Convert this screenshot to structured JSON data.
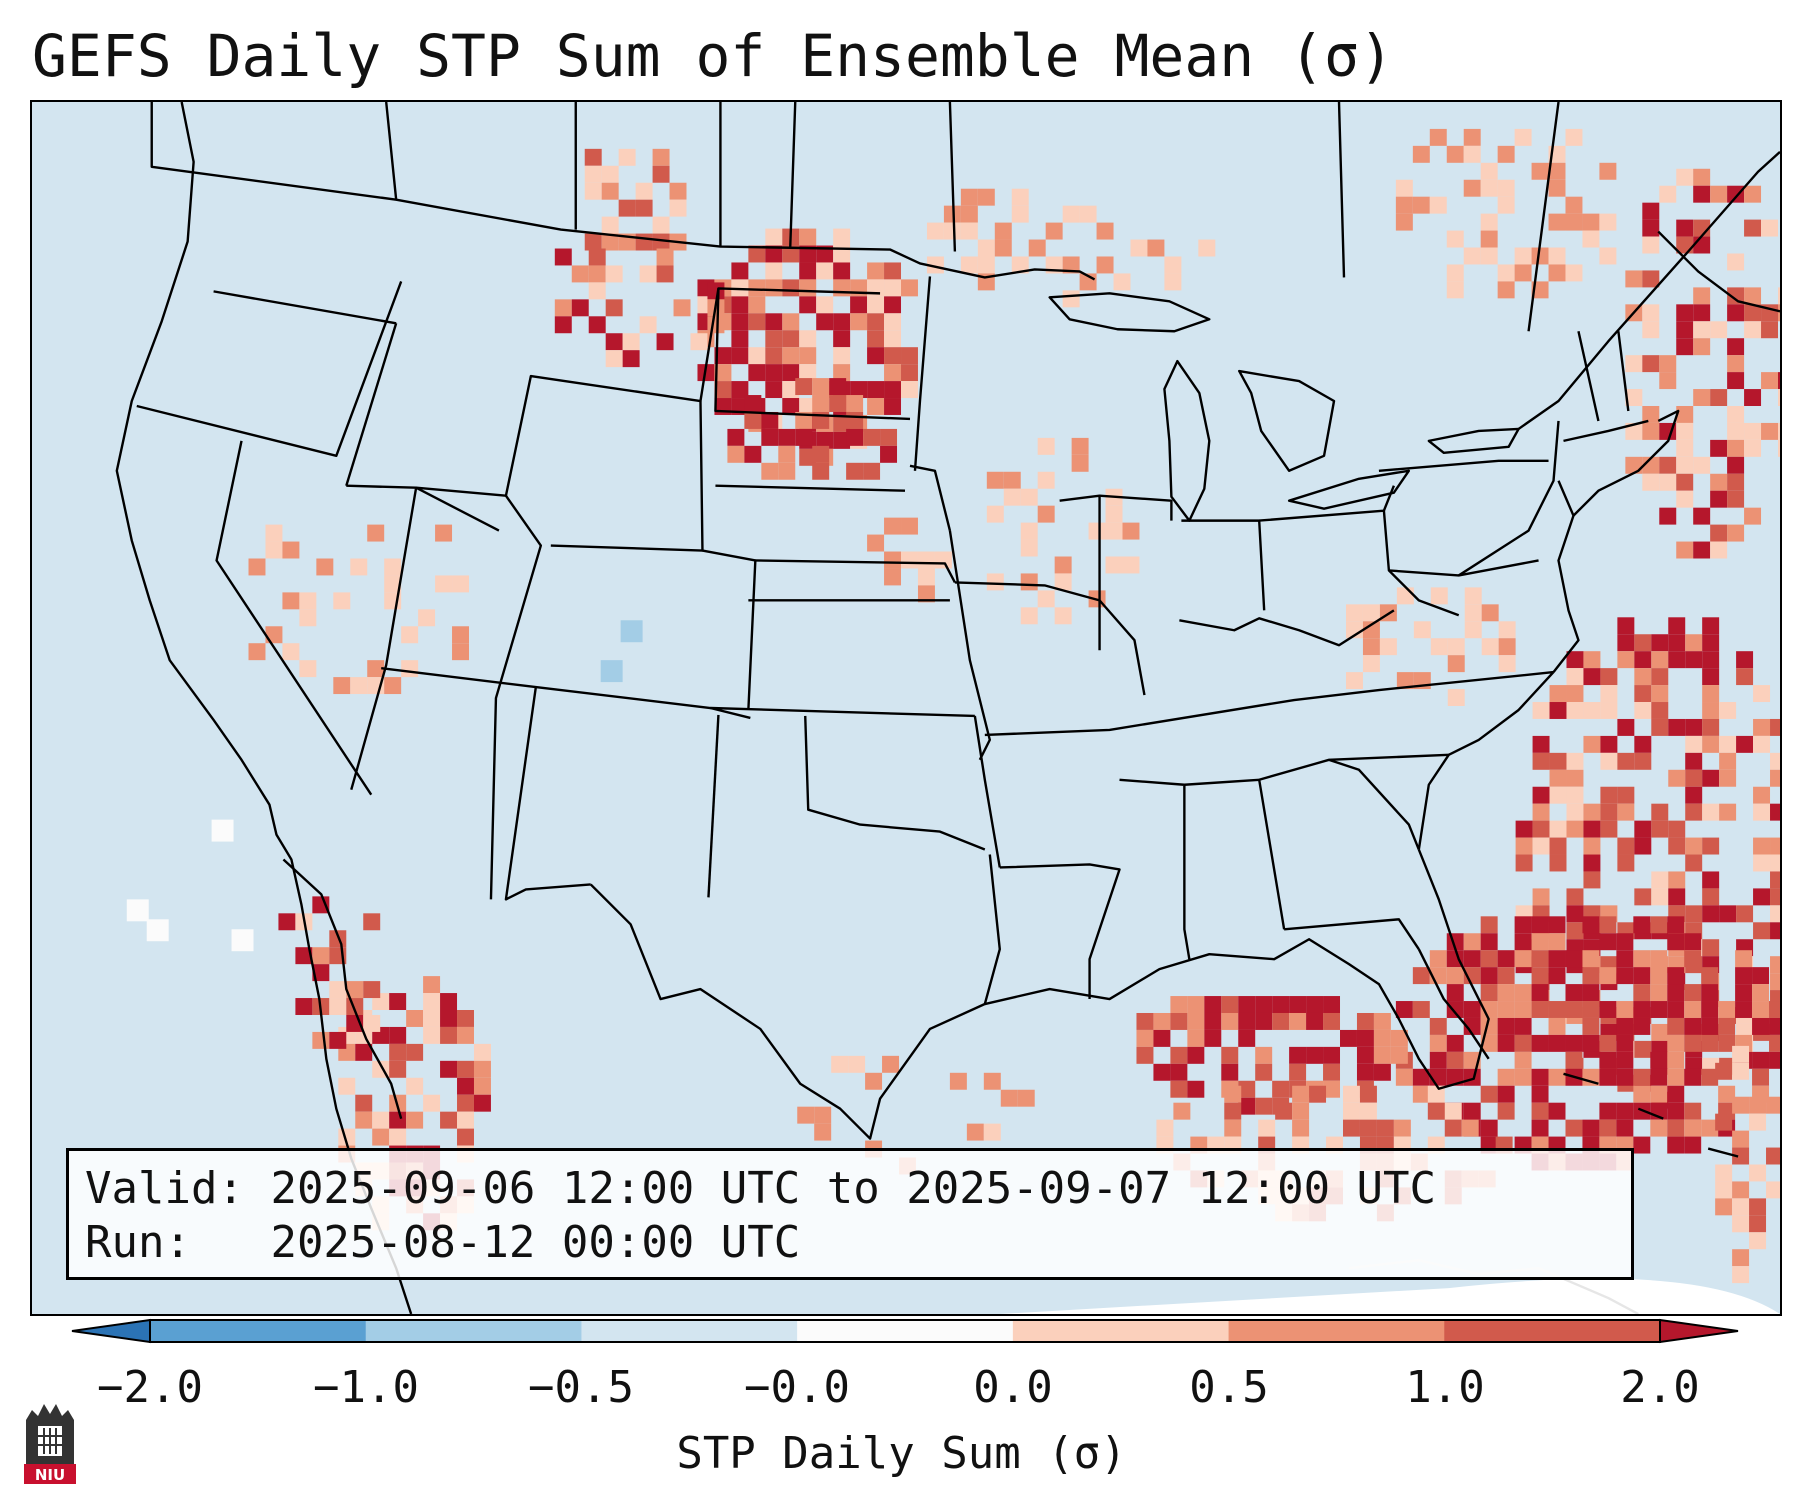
{
  "title": "GEFS Daily STP Sum of Ensemble Mean (σ)",
  "info_box": {
    "valid_label": "Valid:",
    "valid_value": "2025-09-06 12:00 UTC to 2025-09-07 12:00 UTC",
    "run_label": "Run:",
    "run_value": "2025-08-12 00:00 UTC"
  },
  "colorbar": {
    "label": "STP Daily Sum (σ)",
    "ticks": [
      "−2.0",
      "−1.0",
      "−0.5",
      "−0.0",
      "0.0",
      "0.5",
      "1.0",
      "2.0"
    ],
    "colors": [
      "#2b73b5",
      "#5aa0d2",
      "#a3cde6",
      "#d3e5f0",
      "#fbfbfb",
      "#fbd0bc",
      "#ec9274",
      "#d15a4c",
      "#b5172c"
    ]
  },
  "logo": {
    "text": "NIU"
  }
}
